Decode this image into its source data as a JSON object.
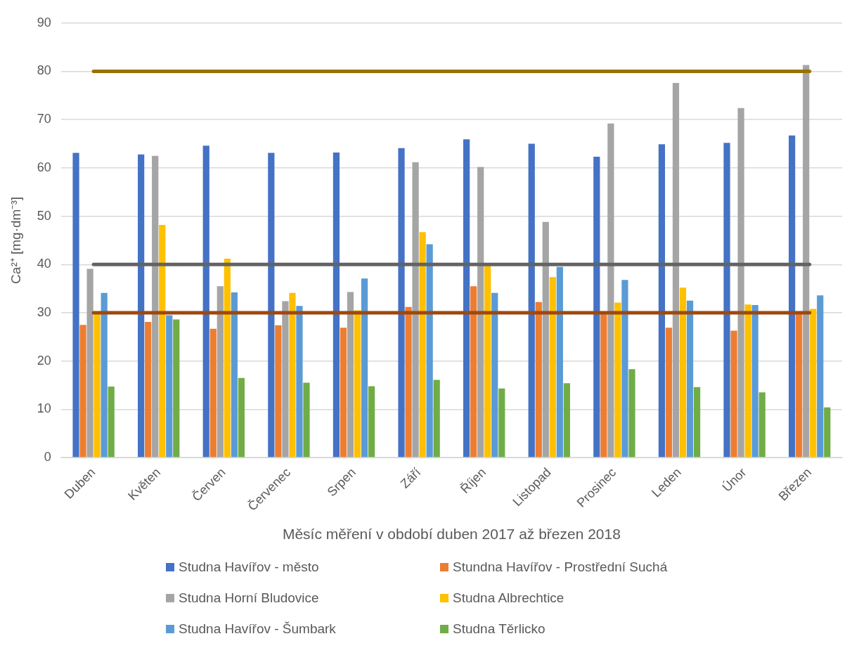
{
  "chart_data": {
    "type": "bar",
    "ylabel": "Ca²⁺ [mg·dm⁻³]",
    "xlabel": "Měsíc měření v období duben 2017 až březen 2018",
    "categories": [
      "Duben",
      "Květen",
      "Červen",
      "Červenec",
      "Srpen",
      "Září",
      "Říjen",
      "Listopad",
      "Prosinec",
      "Leden",
      "Únor",
      "Březen"
    ],
    "series": [
      {
        "name": "Studna Havířov - město",
        "color": "#4472c4",
        "values": [
          63.1,
          62.8,
          64.6,
          63.1,
          63.2,
          64.1,
          65.9,
          65.0,
          62.3,
          64.9,
          65.2,
          66.7
        ]
      },
      {
        "name": "Stundna Havířov - Prostřední Suchá",
        "color": "#ed7d31",
        "values": [
          27.5,
          28.1,
          26.7,
          27.4,
          26.9,
          31.2,
          35.5,
          32.2,
          30.0,
          26.9,
          26.3,
          30.0
        ]
      },
      {
        "name": "Studna Horní Bludovice",
        "color": "#a5a5a5",
        "values": [
          39.1,
          62.5,
          35.5,
          32.4,
          34.3,
          61.2,
          60.2,
          48.8,
          69.2,
          77.6,
          72.4,
          81.3
        ]
      },
      {
        "name": "Studna Albrechtice",
        "color": "#ffc000",
        "values": [
          30.3,
          48.2,
          41.2,
          34.1,
          30.5,
          46.7,
          40.1,
          37.4,
          32.1,
          35.2,
          31.7,
          30.8
        ]
      },
      {
        "name": "Studna Havířov - Šumbark",
        "color": "#5b9bd5",
        "values": [
          34.1,
          29.5,
          34.2,
          31.4,
          37.1,
          44.2,
          34.1,
          39.5,
          36.8,
          32.5,
          31.6,
          33.6
        ]
      },
      {
        "name": "Studna Těrlicko",
        "color": "#70ad47",
        "values": [
          14.7,
          28.6,
          16.5,
          15.5,
          14.8,
          16.1,
          14.3,
          15.4,
          18.3,
          14.6,
          13.5,
          10.4
        ]
      }
    ],
    "ylim": [
      0,
      90
    ],
    "yticks": [
      0,
      10,
      20,
      30,
      40,
      50,
      60,
      70,
      80,
      90
    ],
    "grid": "y",
    "legend": "bottom",
    "ref_lines": [
      {
        "axis": "y",
        "value": 80,
        "color": "#997300"
      },
      {
        "axis": "y",
        "value": 40,
        "color": "#636363"
      },
      {
        "axis": "y",
        "value": 30,
        "color": "#9e480e"
      }
    ]
  }
}
